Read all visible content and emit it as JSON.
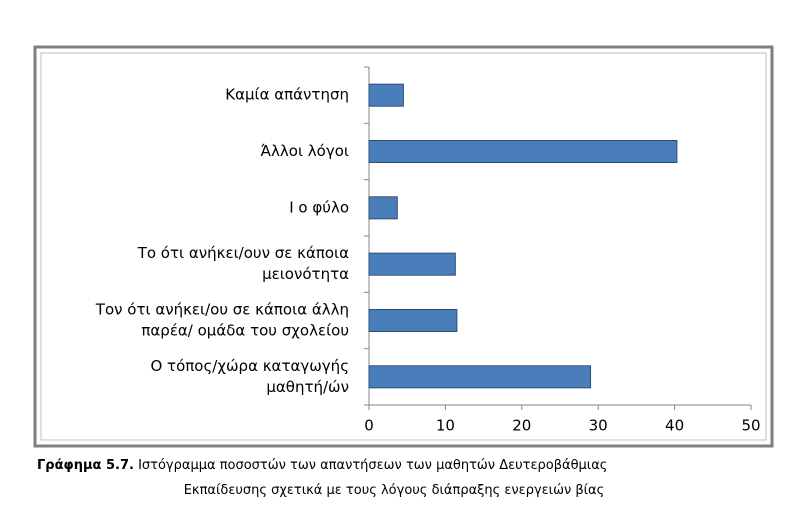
{
  "chart_data": {
    "type": "bar",
    "orientation": "horizontal",
    "categories": [
      [
        "Καμία απάντηση"
      ],
      [
        "Άλλοι λόγοι"
      ],
      [
        "Ι ο φύλο"
      ],
      [
        "Το ότι ανήκει/ουν σε κάποια",
        "μειονότητα"
      ],
      [
        "Τον ότι ανήκει/ου σε κάποια άλλη",
        "παρέα/ ομάδα του σχολείου"
      ],
      [
        "Ο τόπος/χώρα καταγωγής",
        "μαθητή/ών"
      ]
    ],
    "values": [
      4.5,
      40.3,
      3.7,
      11.3,
      11.5,
      29
    ],
    "color": "#4a7ebb",
    "xlim": [
      0,
      50
    ],
    "xticks": [
      0,
      10,
      20,
      30,
      40,
      50
    ],
    "caption_label": "Γράφημα 5.7.",
    "caption": [
      "Ιστόγραμμα ποσοστών των απαντήσεων των μαθητών Δευτεροβάθμιας",
      "Εκπαίδευσης σχετικά με τους λόγους διάπραξης ενεργειών βίας"
    ]
  }
}
